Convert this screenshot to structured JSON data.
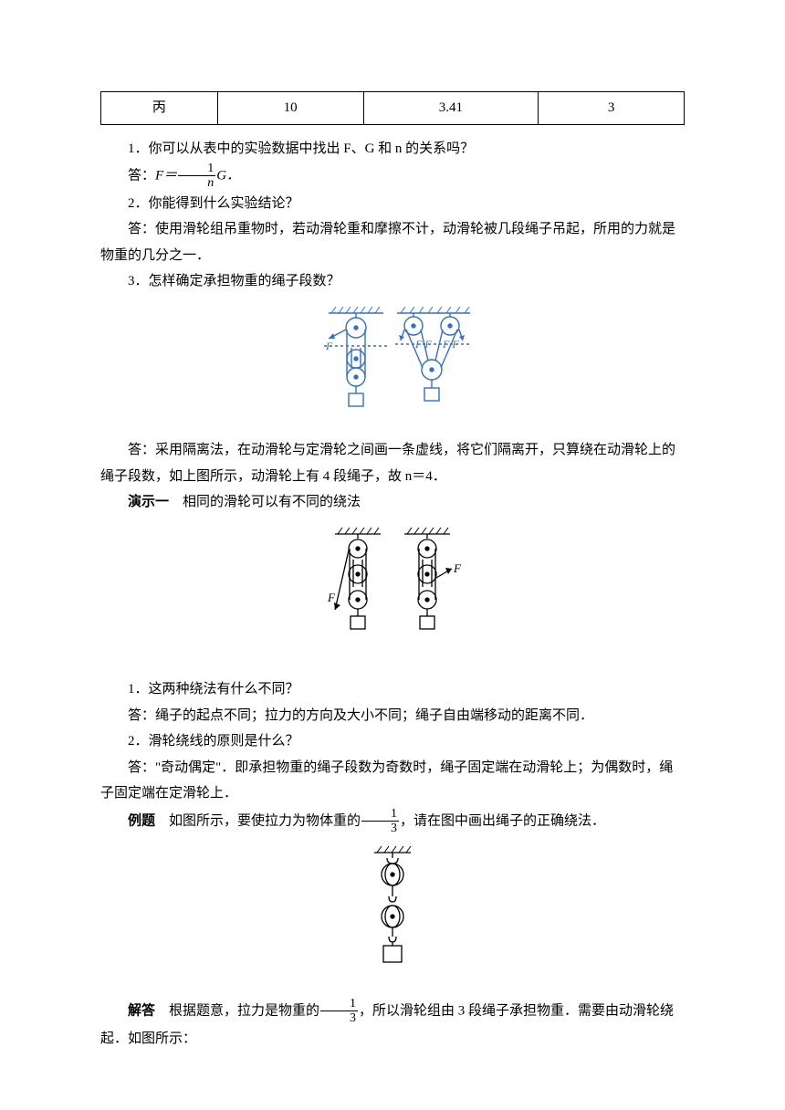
{
  "table": {
    "cells": [
      "丙",
      "10",
      "3.41",
      "3"
    ],
    "col_widths": [
      "20%",
      "25%",
      "30%",
      "25%"
    ]
  },
  "q1": {
    "text": "1．你可以从表中的实验数据中找出 F、G 和 n 的关系吗？",
    "ans_prefix": "答：",
    "formula_lhs": "F＝",
    "formula_num": "1",
    "formula_den": "n",
    "formula_suffix": "G．"
  },
  "q2": {
    "text": "2．你能得到什么实验结论？",
    "ans": "答：使用滑轮组吊重物时，若动滑轮重和摩擦不计，动滑轮被几段绳子吊起，所用的力就是物重的几分之一．"
  },
  "q3": {
    "text": "3．怎样确定承担物重的绳子段数？",
    "ans": "答：采用隔离法，在动滑轮与定滑轮之间画一条虚线，将它们隔离开，只算绕在动滑轮上的绳子段数，如上图所示，动滑轮上有 4 段绳子，故 n＝4．"
  },
  "demo1": {
    "title_label": "演示一",
    "title_text": "相同的滑轮可以有不同的绕法",
    "q1": "1．这两种绕法有什么不同？",
    "a1": "答：绳子的起点不同；拉力的方向及大小不同；绳子自由端移动的距离不同．",
    "q2": "2．滑轮绕线的原则是什么？",
    "a2": "答：\"奇动偶定\"．即承担物重的绳子段数为奇数时，绳子固定端在动滑轮上；为偶数时，绳子固定端在定滑轮上．"
  },
  "example": {
    "label": "例题",
    "text1": "如图所示，要使拉力为物体重的",
    "frac_num": "1",
    "frac_den": "3",
    "text2": "，请在图中画出绳子的正确绕法．"
  },
  "answer": {
    "label": "解答",
    "text1": "根据题意，拉力是物重的",
    "frac_num": "1",
    "frac_den": "3",
    "text2": "，所以滑轮组由 3 段绳子承担物重．需要由动滑轮绕起．如图所示："
  },
  "fig1": {
    "stroke": "#2e6fd6",
    "labels": [
      "F",
      "F F",
      "F F"
    ]
  },
  "fig2": {
    "stroke": "#000000",
    "label": "F"
  },
  "fig3": {
    "stroke": "#000000"
  }
}
